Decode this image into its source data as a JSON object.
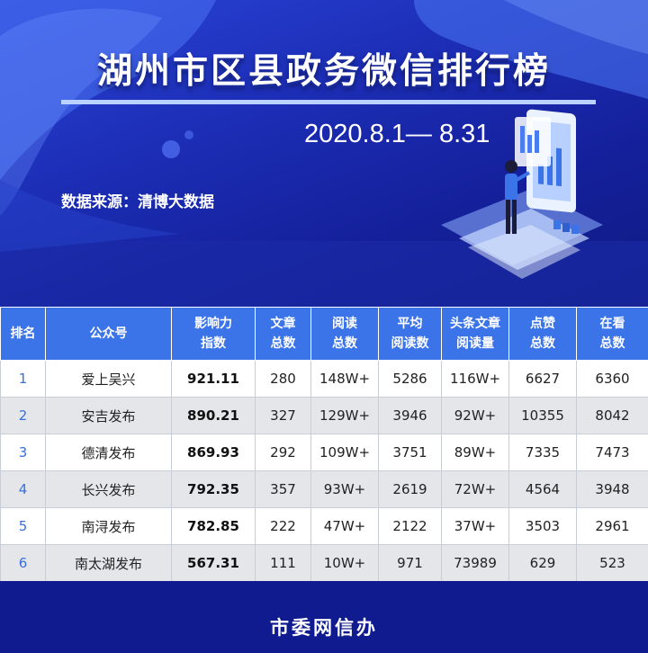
{
  "banner": {
    "title": "湖州市区县政务微信排行榜",
    "date_range": "2020.8.1— 8.31",
    "source": "数据来源：清博大数据"
  },
  "table": {
    "headers": [
      [
        "排名"
      ],
      [
        "公众号"
      ],
      [
        "影响力",
        "指数"
      ],
      [
        "文章",
        "总数"
      ],
      [
        "阅读",
        "总数"
      ],
      [
        "平均",
        "阅读数"
      ],
      [
        "头条文章",
        "阅读量"
      ],
      [
        "点赞",
        "总数"
      ],
      [
        "在看",
        "总数"
      ]
    ],
    "rows": [
      [
        "1",
        "爱上吴兴",
        "921.11",
        "280",
        "148W+",
        "5286",
        "116W+",
        "6627",
        "6360"
      ],
      [
        "2",
        "安吉发布",
        "890.21",
        "327",
        "129W+",
        "3946",
        "92W+",
        "10355",
        "8042"
      ],
      [
        "3",
        "德清发布",
        "869.93",
        "292",
        "109W+",
        "3751",
        "89W+",
        "7335",
        "7473"
      ],
      [
        "4",
        "长兴发布",
        "792.35",
        "357",
        "93W+",
        "2619",
        "72W+",
        "4564",
        "3948"
      ],
      [
        "5",
        "南浔发布",
        "782.85",
        "222",
        "47W+",
        "2122",
        "37W+",
        "3503",
        "2961"
      ],
      [
        "6",
        "南太湖发布",
        "567.31",
        "111",
        "10W+",
        "971",
        "73989",
        "629",
        "523"
      ]
    ]
  },
  "footer": {
    "text": "市委网信办"
  }
}
